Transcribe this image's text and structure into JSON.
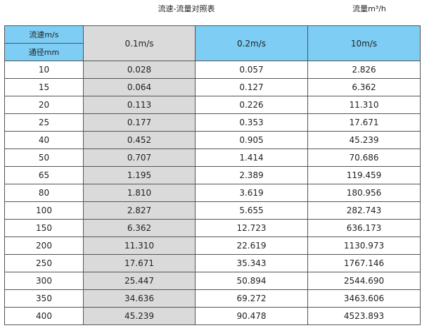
{
  "title": "流速-流量对照表",
  "unit_label": "流量m³/h",
  "header": {
    "velocity_label": "流速m/s",
    "diameter_label": "通径mm",
    "columns": [
      "0.1m/s",
      "0.2m/s",
      "10m/s"
    ]
  },
  "colors": {
    "header_blue": "#7dcdf4",
    "header_dark_blue": "#6cb3d8",
    "highlight_gray": "#dadada"
  },
  "rows": [
    [
      "10",
      "0.028",
      "0.057",
      "2.826"
    ],
    [
      "15",
      "0.064",
      "0.127",
      "6.362"
    ],
    [
      "20",
      "0.113",
      "0.226",
      "11.310"
    ],
    [
      "25",
      "0.177",
      "0.353",
      "17.671"
    ],
    [
      "40",
      "0.452",
      "0.905",
      "45.239"
    ],
    [
      "50",
      "0.707",
      "1.414",
      "70.686"
    ],
    [
      "65",
      "1.195",
      "2.389",
      "119.459"
    ],
    [
      "80",
      "1.810",
      "3.619",
      "180.956"
    ],
    [
      "100",
      "2.827",
      "5.655",
      "282.743"
    ],
    [
      "150",
      "6.362",
      "12.723",
      "636.173"
    ],
    [
      "200",
      "11.310",
      "22.619",
      "1130.973"
    ],
    [
      "250",
      "17.671",
      "35.343",
      "1767.146"
    ],
    [
      "300",
      "25.447",
      "50.894",
      "2544.690"
    ],
    [
      "350",
      "34.636",
      "69.272",
      "3463.606"
    ],
    [
      "400",
      "45.239",
      "90.478",
      "4523.893"
    ]
  ]
}
